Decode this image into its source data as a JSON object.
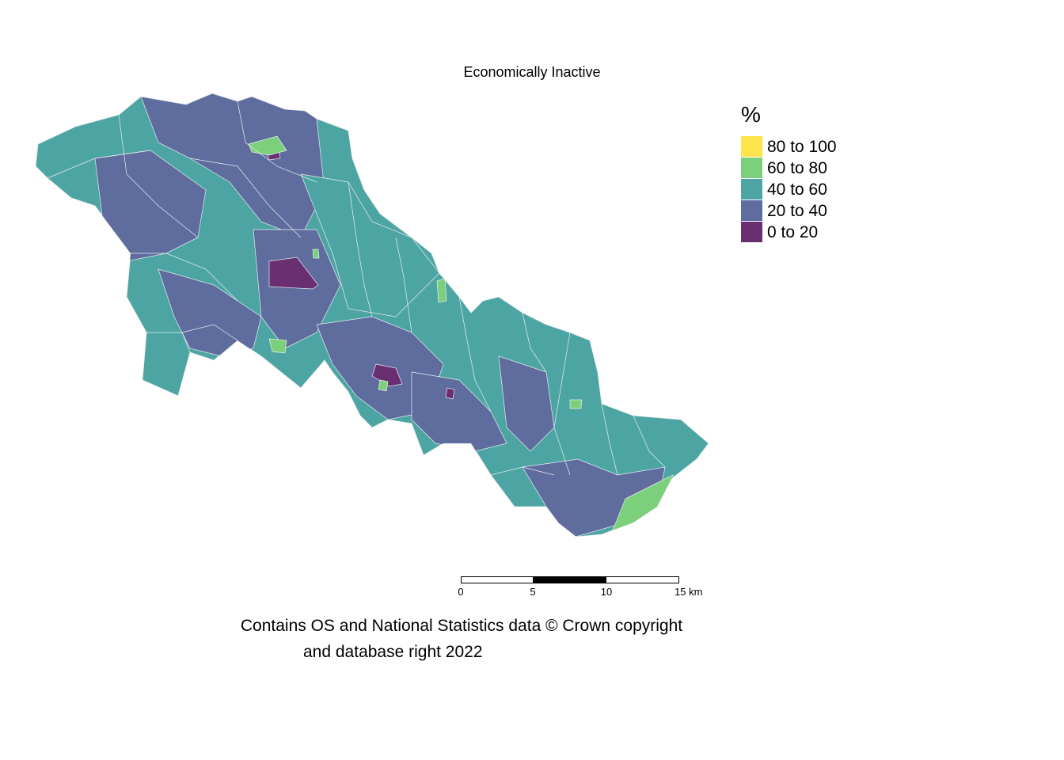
{
  "map": {
    "title": "Economically Inactive",
    "colors": {
      "c0": "#6a2f71",
      "c20": "#5f6c9e",
      "c40": "#4da5a3",
      "c60": "#7dd07b",
      "c80": "#fde44a",
      "boundary": "#e8eef2"
    }
  },
  "legend": {
    "title": "%",
    "items": [
      {
        "label": "80 to 100",
        "color": "#fde44a"
      },
      {
        "label": "60 to 80",
        "color": "#7dd07b"
      },
      {
        "label": "40 to 60",
        "color": "#4da5a3"
      },
      {
        "label": "20 to 40",
        "color": "#5f6c9e"
      },
      {
        "label": "0 to 20",
        "color": "#6a2f71"
      }
    ]
  },
  "scalebar": {
    "ticks": [
      "0",
      "5",
      "10",
      "15 km"
    ]
  },
  "attribution": {
    "line1": "Contains OS and National Statistics data © Crown copyright",
    "line2": "and database right 2022"
  }
}
